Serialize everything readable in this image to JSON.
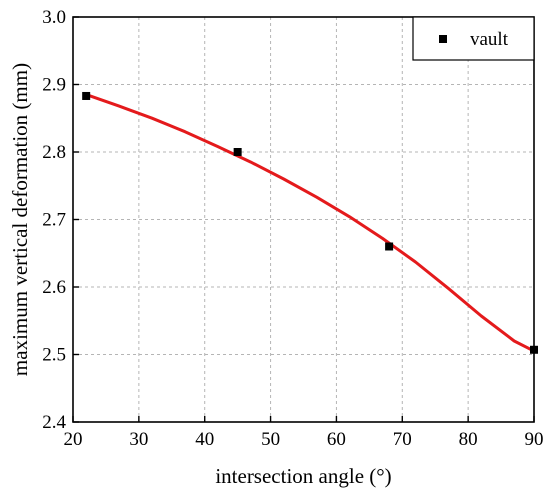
{
  "chart_data": {
    "type": "scatter",
    "title": "",
    "xlabel": "intersection angle (°)",
    "ylabel": "maximum vertical deformation (mm)",
    "xlim": [
      20,
      90
    ],
    "ylim": [
      2.4,
      3.0
    ],
    "xticks": [
      20,
      30,
      40,
      50,
      60,
      70,
      80,
      90
    ],
    "yticks": [
      2.4,
      2.5,
      2.6,
      2.7,
      2.8,
      2.9,
      3.0
    ],
    "xtick_labels": [
      "20",
      "30",
      "40",
      "50",
      "60",
      "70",
      "80",
      "90"
    ],
    "ytick_labels": [
      "2.4",
      "2.5",
      "2.6",
      "2.7",
      "2.8",
      "2.9",
      "3.0"
    ],
    "grid": true,
    "legend_position": "top-right",
    "series": [
      {
        "name": "vault",
        "marker": "square",
        "color": "#000000",
        "x": [
          22,
          45,
          68,
          90
        ],
        "y": [
          2.883,
          2.8,
          2.66,
          2.507
        ]
      }
    ],
    "fit_curve": {
      "color": "#e41a1c",
      "x": [
        22,
        27,
        32,
        37,
        42,
        47,
        52,
        57,
        62,
        67,
        72,
        77,
        82,
        87,
        90
      ],
      "y": [
        2.885,
        2.868,
        2.85,
        2.83,
        2.808,
        2.785,
        2.76,
        2.733,
        2.704,
        2.672,
        2.637,
        2.598,
        2.557,
        2.52,
        2.505
      ]
    }
  }
}
